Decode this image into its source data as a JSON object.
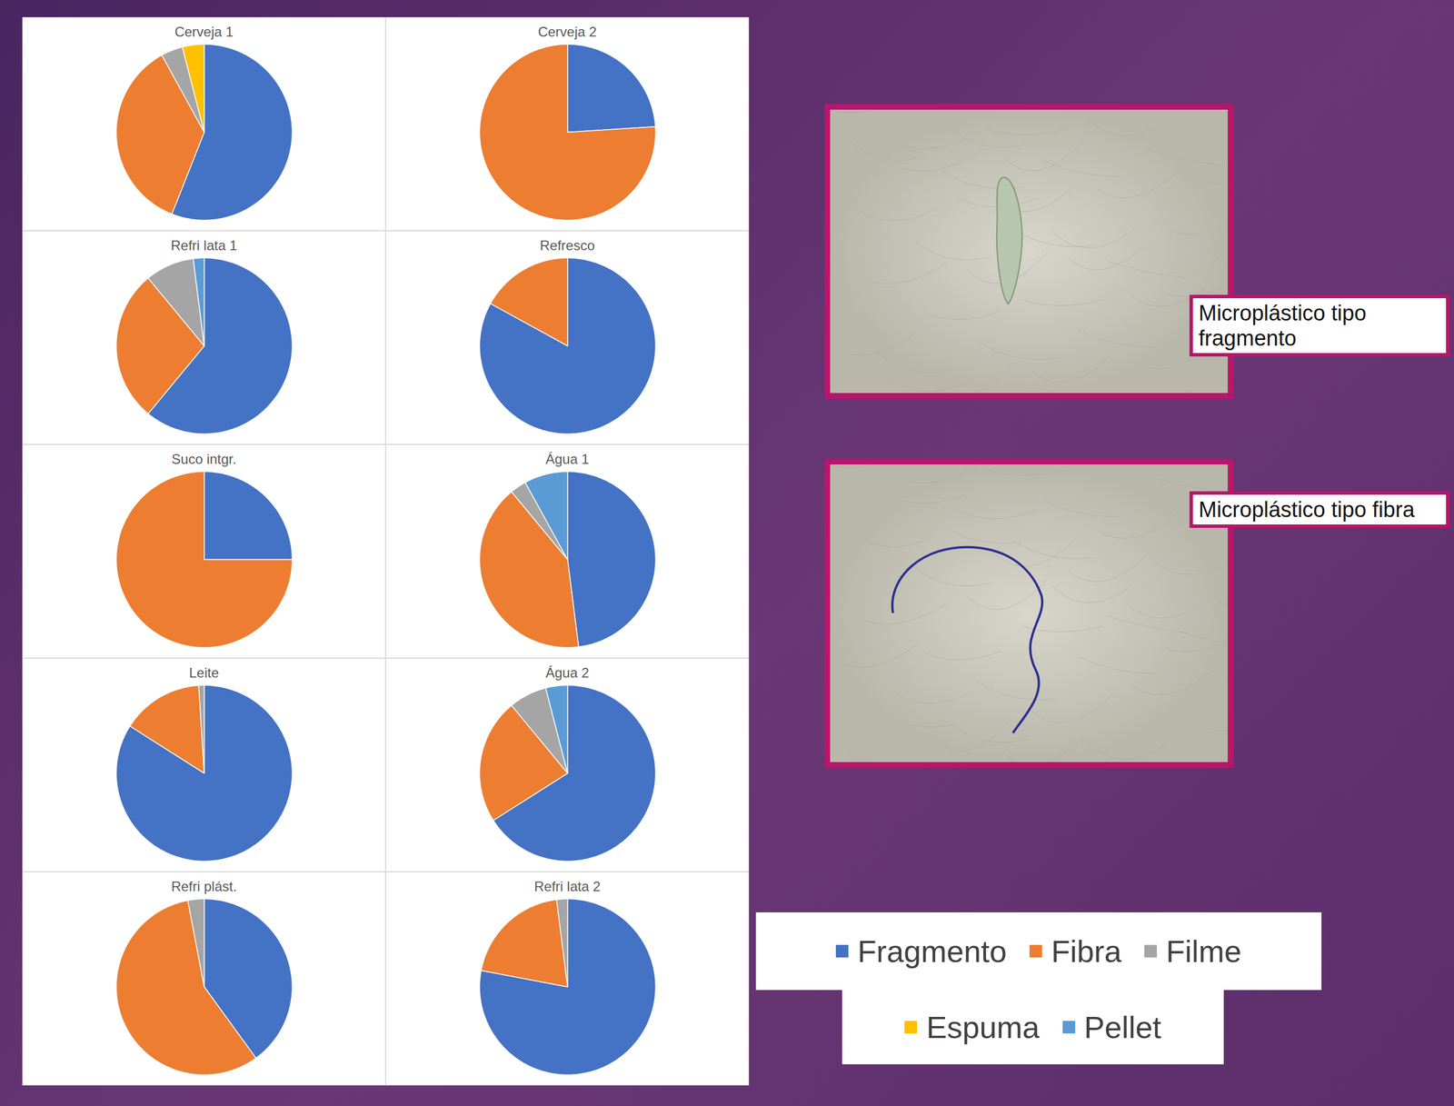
{
  "chart_data": [
    {
      "type": "pie",
      "title": "Cerveja 1",
      "categories": [
        "Fragmento",
        "Fibra",
        "Filme",
        "Espuma",
        "Pellet"
      ],
      "values": [
        56,
        36,
        4,
        4,
        0
      ],
      "colors": [
        "#4472c4",
        "#ed7d31",
        "#a5a5a5",
        "#ffc000",
        "#5b9bd5"
      ],
      "legend": "right"
    },
    {
      "type": "pie",
      "title": "Cerveja 2",
      "categories": [
        "Fragmento",
        "Fibra",
        "Filme",
        "Espuma",
        "Pellet"
      ],
      "values": [
        24,
        76,
        0,
        0,
        0
      ],
      "colors": [
        "#4472c4",
        "#ed7d31",
        "#a5a5a5",
        "#ffc000",
        "#5b9bd5"
      ],
      "legend": "right"
    },
    {
      "type": "pie",
      "title": "Refri lata 1",
      "categories": [
        "Fragmento",
        "Fibra",
        "Filme",
        "Espuma",
        "Pellet"
      ],
      "values": [
        61,
        28,
        9,
        0,
        2
      ],
      "colors": [
        "#4472c4",
        "#ed7d31",
        "#a5a5a5",
        "#ffc000",
        "#5b9bd5"
      ],
      "legend": "right"
    },
    {
      "type": "pie",
      "title": "Refresco",
      "categories": [
        "Fragmento",
        "Fibra",
        "Filme",
        "Espuma",
        "Pellet"
      ],
      "values": [
        83,
        17,
        0,
        0,
        0
      ],
      "colors": [
        "#4472c4",
        "#ed7d31",
        "#a5a5a5",
        "#ffc000",
        "#5b9bd5"
      ],
      "legend": "right"
    },
    {
      "type": "pie",
      "title": "Suco intgr.",
      "categories": [
        "Fragmento",
        "Fibra",
        "Filme",
        "Espuma",
        "Pellet"
      ],
      "values": [
        25,
        75,
        0,
        0,
        0
      ],
      "colors": [
        "#4472c4",
        "#ed7d31",
        "#a5a5a5",
        "#ffc000",
        "#5b9bd5"
      ],
      "legend": "right"
    },
    {
      "type": "pie",
      "title": "Água 1",
      "categories": [
        "Fragmento",
        "Fibra",
        "Filme",
        "Espuma",
        "Pellet"
      ],
      "values": [
        48,
        41,
        3,
        0,
        8
      ],
      "colors": [
        "#4472c4",
        "#ed7d31",
        "#a5a5a5",
        "#ffc000",
        "#5b9bd5"
      ],
      "legend": "right"
    },
    {
      "type": "pie",
      "title": "Leite",
      "categories": [
        "Fragmento",
        "Fibra",
        "Filme",
        "Espuma",
        "Pellet"
      ],
      "values": [
        84,
        15,
        1,
        0,
        0
      ],
      "colors": [
        "#4472c4",
        "#ed7d31",
        "#a5a5a5",
        "#ffc000",
        "#5b9bd5"
      ],
      "legend": "right"
    },
    {
      "type": "pie",
      "title": "Água 2",
      "categories": [
        "Fragmento",
        "Fibra",
        "Filme",
        "Espuma",
        "Pellet"
      ],
      "values": [
        66,
        23,
        7,
        0,
        4
      ],
      "colors": [
        "#4472c4",
        "#ed7d31",
        "#a5a5a5",
        "#ffc000",
        "#5b9bd5"
      ],
      "legend": "right"
    },
    {
      "type": "pie",
      "title": "Refri plást.",
      "categories": [
        "Fragmento",
        "Fibra",
        "Filme",
        "Espuma",
        "Pellet"
      ],
      "values": [
        40,
        57,
        3,
        0,
        0
      ],
      "colors": [
        "#4472c4",
        "#ed7d31",
        "#a5a5a5",
        "#ffc000",
        "#5b9bd5"
      ],
      "legend": "right"
    },
    {
      "type": "pie",
      "title": "Refri lata 2",
      "categories": [
        "Fragmento",
        "Fibra",
        "Filme",
        "Espuma",
        "Pellet"
      ],
      "values": [
        78,
        20,
        2,
        0,
        0
      ],
      "colors": [
        "#4472c4",
        "#ed7d31",
        "#a5a5a5",
        "#ffc000",
        "#5b9bd5"
      ],
      "legend": "right"
    }
  ],
  "images": [
    {
      "caption": "Microplástico tipo fragmento"
    },
    {
      "caption": "Microplástico tipo fibra"
    }
  ]
}
